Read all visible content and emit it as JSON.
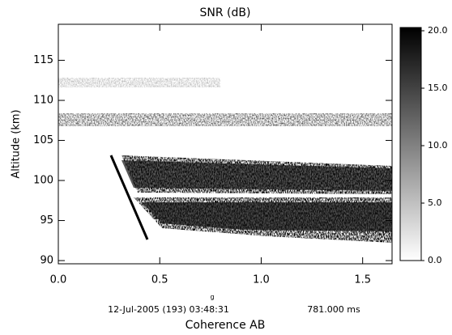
{
  "chart_data": {
    "type": "heatmap",
    "title": "SNR (dB)",
    "xlabel": "Coherence AB",
    "ylabel": "Altitude (km)",
    "footer_date": "12-Jul-2005 (193) 03:48:31",
    "footer_time": "781.000 ms",
    "footer_mark": "g",
    "xlim": [
      0,
      1.645
    ],
    "xticks": [
      {
        "value": 0,
        "label": "0.0"
      },
      {
        "value": 0.5,
        "label": "0.5"
      },
      {
        "value": 1,
        "label": "1.0"
      },
      {
        "value": 1.5,
        "label": "1.5"
      }
    ],
    "ylim": [
      89.6,
      119.5
    ],
    "yticks": [
      90,
      95,
      100,
      105,
      110,
      115
    ],
    "colorbar": {
      "lim": [
        0,
        20
      ],
      "ticks": [
        {
          "value": 0,
          "label": "0.0"
        },
        {
          "value": 5,
          "label": "5.0"
        },
        {
          "value": 10,
          "label": "10.0"
        },
        {
          "value": 15,
          "label": "15.0"
        },
        {
          "value": 20,
          "label": "20.0"
        }
      ],
      "colors": [
        "#ffffff",
        "#000000"
      ]
    }
  }
}
